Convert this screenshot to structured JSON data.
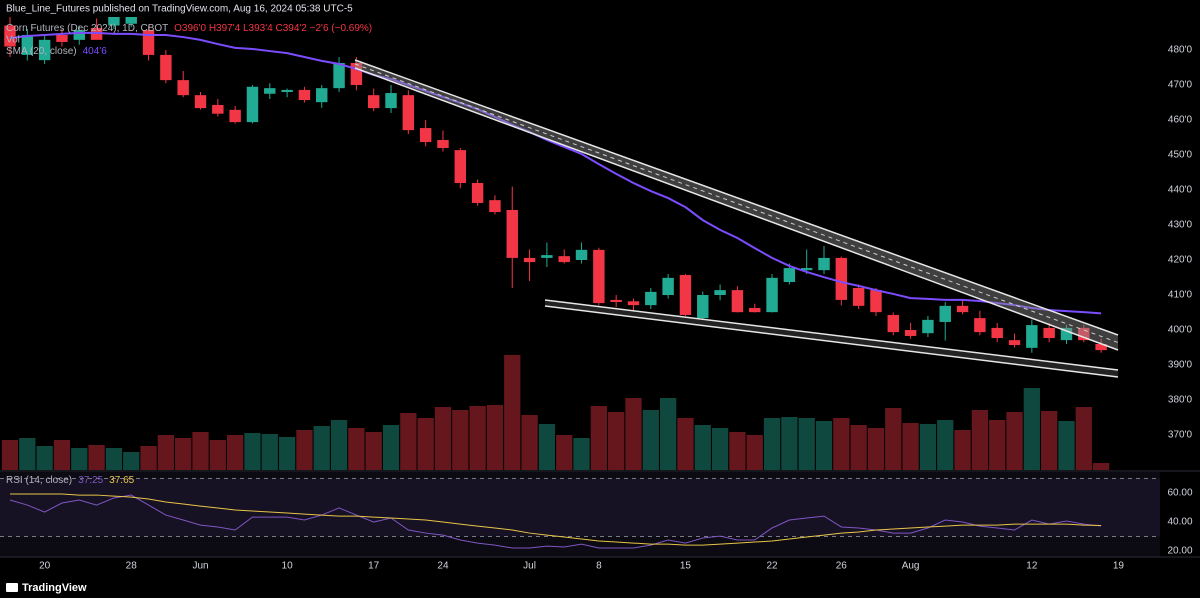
{
  "header": {
    "text": "Blue_Line_Futures published on TradingView.com, Aug 16, 2024 05:38 UTC-5"
  },
  "chart_data": [
    {
      "type": "candlestick",
      "title": "Corn Futures (Dec 2024), 1D, CBOT",
      "ohlc_label": "O396'0 H397'4 L393'4 C394'2 −2'6 (−0.69%)",
      "up_color": "#22ab94",
      "down_color": "#f23645",
      "open": [
        487,
        478.6,
        477.1,
        484.3,
        482.9,
        486.3,
        487,
        487.5,
        485.7,
        478.6,
        471.4,
        467.1,
        464.3,
        462.9,
        459.4,
        467.5,
        468,
        468.6,
        465.1,
        469.1,
        476.3,
        467.1,
        463.4,
        467.1,
        457.7,
        454.3,
        451.4,
        442,
        437.1,
        434.3,
        420.6,
        420.6,
        421.1,
        420,
        422.9,
        408.6,
        408.2,
        407.1,
        410,
        415.7,
        403.4,
        410,
        411.4,
        406.3,
        405.1,
        413.7,
        417.1,
        417.1,
        420.6,
        412,
        411.4,
        404.3,
        400,
        399.1,
        402.3,
        406.9,
        403.4,
        400.6,
        397.1,
        394.9,
        400.6,
        397.1,
        400.6,
        396
      ],
      "high": [
        490,
        486,
        484,
        486,
        487,
        489,
        492,
        492,
        487,
        480,
        474,
        468,
        466,
        464,
        470,
        470.5,
        469,
        469.5,
        470,
        478,
        478,
        469,
        470,
        468.5,
        460,
        457,
        452,
        443,
        438.5,
        441,
        423,
        425,
        423,
        425,
        423.5,
        410,
        409,
        412,
        416,
        416,
        411,
        413,
        412.5,
        407.5,
        416,
        419,
        423,
        424,
        421,
        413,
        412,
        405,
        402,
        404,
        408,
        408.5,
        405.5,
        402,
        399,
        403,
        402,
        401.5,
        401.5,
        397.5
      ],
      "low": [
        478,
        477,
        476,
        481,
        481.5,
        483,
        486,
        486.5,
        477,
        470.5,
        466.5,
        463,
        461,
        459,
        459,
        466,
        466.5,
        465,
        463.5,
        468,
        468.5,
        462.5,
        462,
        456,
        452.5,
        451,
        440.5,
        435.5,
        433,
        412,
        414,
        418,
        419,
        419,
        407,
        406.5,
        405.5,
        406,
        409,
        404,
        403,
        408.5,
        405,
        405,
        405,
        413,
        416,
        416,
        407,
        406,
        404,
        398.5,
        397.5,
        398,
        397,
        404.5,
        398.5,
        396.5,
        395,
        393.5,
        396.5,
        396,
        396.5,
        393.5
      ],
      "close": [
        481,
        484.3,
        482.9,
        482.3,
        485.7,
        482.9,
        489.5,
        490,
        478.6,
        471.4,
        467.1,
        463.4,
        461.8,
        459.4,
        469.5,
        469.1,
        468.6,
        465.7,
        469.1,
        476.3,
        470,
        463.4,
        467.7,
        457.1,
        453.7,
        452,
        442,
        436.3,
        433.7,
        420.6,
        419.4,
        421.4,
        419.4,
        422.9,
        407.7,
        408,
        407.1,
        410.9,
        414.9,
        404.3,
        410,
        411.4,
        405.1,
        405.1,
        414.9,
        417.7,
        417.7,
        420.6,
        408.6,
        406.9,
        405.1,
        399.4,
        398.3,
        402.9,
        406.9,
        405.1,
        399.4,
        397.7,
        395.7,
        401.4,
        397.7,
        400.6,
        397.1,
        394.25
      ],
      "volume": {
        "name": "Vol",
        "ylim": [
          0,
          150
        ],
        "values": [
          30,
          32,
          24,
          30,
          22,
          25,
          22,
          18,
          24,
          35,
          32,
          38,
          30,
          35,
          37,
          36,
          33,
          40,
          44,
          50,
          42,
          38,
          45,
          57,
          52,
          63,
          60,
          64,
          65,
          115,
          55,
          46,
          35,
          32,
          64,
          58,
          72,
          60,
          72,
          52,
          45,
          42,
          38,
          35,
          52,
          53,
          52,
          49,
          52,
          45,
          42,
          62,
          47,
          46,
          50,
          40,
          60,
          50,
          58,
          82,
          59,
          49,
          63,
          7
        ]
      },
      "sma": {
        "name": "SMA (20, close)",
        "color": "#7c4dff",
        "last_value_label": "404'6",
        "values": [
          483.4,
          484,
          484.3,
          484.6,
          484.9,
          484.9,
          484.6,
          484.6,
          484.3,
          484.3,
          483.7,
          482.9,
          481.7,
          480.6,
          480.3,
          479.7,
          479.1,
          478,
          476.9,
          476,
          474.6,
          472.9,
          471.7,
          470,
          468.3,
          466.6,
          464.9,
          463.1,
          460.9,
          458.6,
          456.6,
          454.3,
          452.3,
          450.3,
          447.4,
          444.6,
          442,
          439.7,
          437.7,
          435.1,
          431.4,
          428.6,
          426.3,
          423.4,
          420.6,
          418.3,
          416.6,
          415.1,
          413.7,
          412.6,
          411.4,
          410.3,
          409.1,
          408.9,
          408.6,
          408.6,
          408.3,
          407.7,
          407.1,
          406.3,
          405.7,
          405.4,
          405.1,
          404.75
        ]
      },
      "xlim": [
        -0.577,
        66.4
      ],
      "xticks": [
        {
          "value": 2,
          "label": "20"
        },
        {
          "value": 7,
          "label": "28"
        },
        {
          "value": 11,
          "label": "Jun"
        },
        {
          "value": 16,
          "label": "10"
        },
        {
          "value": 21,
          "label": "17"
        },
        {
          "value": 25,
          "label": "24"
        },
        {
          "value": 30,
          "label": "Jul"
        },
        {
          "value": 34,
          "label": "8"
        },
        {
          "value": 39,
          "label": "15"
        },
        {
          "value": 44,
          "label": "22"
        },
        {
          "value": 48,
          "label": "26"
        },
        {
          "value": 52,
          "label": "Aug"
        },
        {
          "value": 59,
          "label": "12"
        },
        {
          "value": 64,
          "label": "19"
        }
      ],
      "ylim": [
        360,
        494.29
      ],
      "yticks": [
        {
          "value": 480,
          "label": "480'0"
        },
        {
          "value": 470,
          "label": "470'0"
        },
        {
          "value": 460,
          "label": "460'0"
        },
        {
          "value": 450,
          "label": "450'0"
        },
        {
          "value": 440,
          "label": "440'0"
        },
        {
          "value": 430,
          "label": "430'0"
        },
        {
          "value": 420,
          "label": "420'0"
        },
        {
          "value": 410,
          "label": "410'0"
        },
        {
          "value": 400,
          "label": "400'0"
        },
        {
          "value": 390,
          "label": "390'0"
        },
        {
          "value": 380,
          "label": "380'0"
        },
        {
          "value": 370,
          "label": "370'0"
        }
      ]
    },
    {
      "type": "line",
      "title": "RSI (14, close)",
      "series": [
        {
          "color": "#7e57c2",
          "values": [
            55.2,
            51.7,
            46.9,
            53.1,
            55.2,
            51.7,
            56.6,
            58.6,
            51.7,
            44.8,
            41.4,
            37.9,
            36.6,
            34.5,
            43.4,
            43.4,
            43.4,
            41.4,
            44.8,
            49.7,
            44.8,
            40,
            42.8,
            34.5,
            32.4,
            31,
            27.6,
            25.5,
            24.1,
            22.1,
            22.1,
            23.4,
            22.8,
            24.8,
            22.1,
            22.1,
            22.1,
            24.1,
            27.6,
            25.5,
            29,
            30.3,
            27.6,
            27.6,
            35.9,
            41.4,
            42.8,
            44.1,
            36.6,
            35.9,
            34.5,
            32.4,
            32.4,
            35.9,
            41.4,
            40,
            37.2,
            35.9,
            34.5,
            41.4,
            38.6,
            40.7,
            38.6,
            37.25
          ]
        },
        {
          "color": "#e8c547",
          "values": [
            59.3,
            59.3,
            59.3,
            59.3,
            58.6,
            58.6,
            57.9,
            57.2,
            55.9,
            53.8,
            52.4,
            51,
            49.7,
            48.3,
            47.6,
            46.9,
            46.2,
            45.5,
            44.8,
            44.1,
            44.1,
            43.4,
            42.8,
            42.1,
            41.4,
            40,
            38.6,
            37.2,
            35.9,
            34.5,
            32.4,
            31,
            29.7,
            28.3,
            26.9,
            26.2,
            25.5,
            24.8,
            24.8,
            24.1,
            24.1,
            24.8,
            25.5,
            26.2,
            26.9,
            28.3,
            29.7,
            31,
            32.4,
            33.1,
            34.5,
            35.2,
            35.9,
            36.6,
            37.2,
            37.9,
            37.9,
            37.9,
            38.6,
            38.6,
            38.6,
            38.6,
            37.9,
            37.65
          ]
        }
      ],
      "bands": [
        30,
        70
      ],
      "ylim": [
        15.9,
        74.5
      ],
      "yticks": [
        {
          "value": 60,
          "label": "60.00"
        },
        {
          "value": 40,
          "label": "40.00"
        },
        {
          "value": 20,
          "label": "20.00"
        }
      ]
    }
  ],
  "footer": {
    "brand": "TradingView"
  }
}
